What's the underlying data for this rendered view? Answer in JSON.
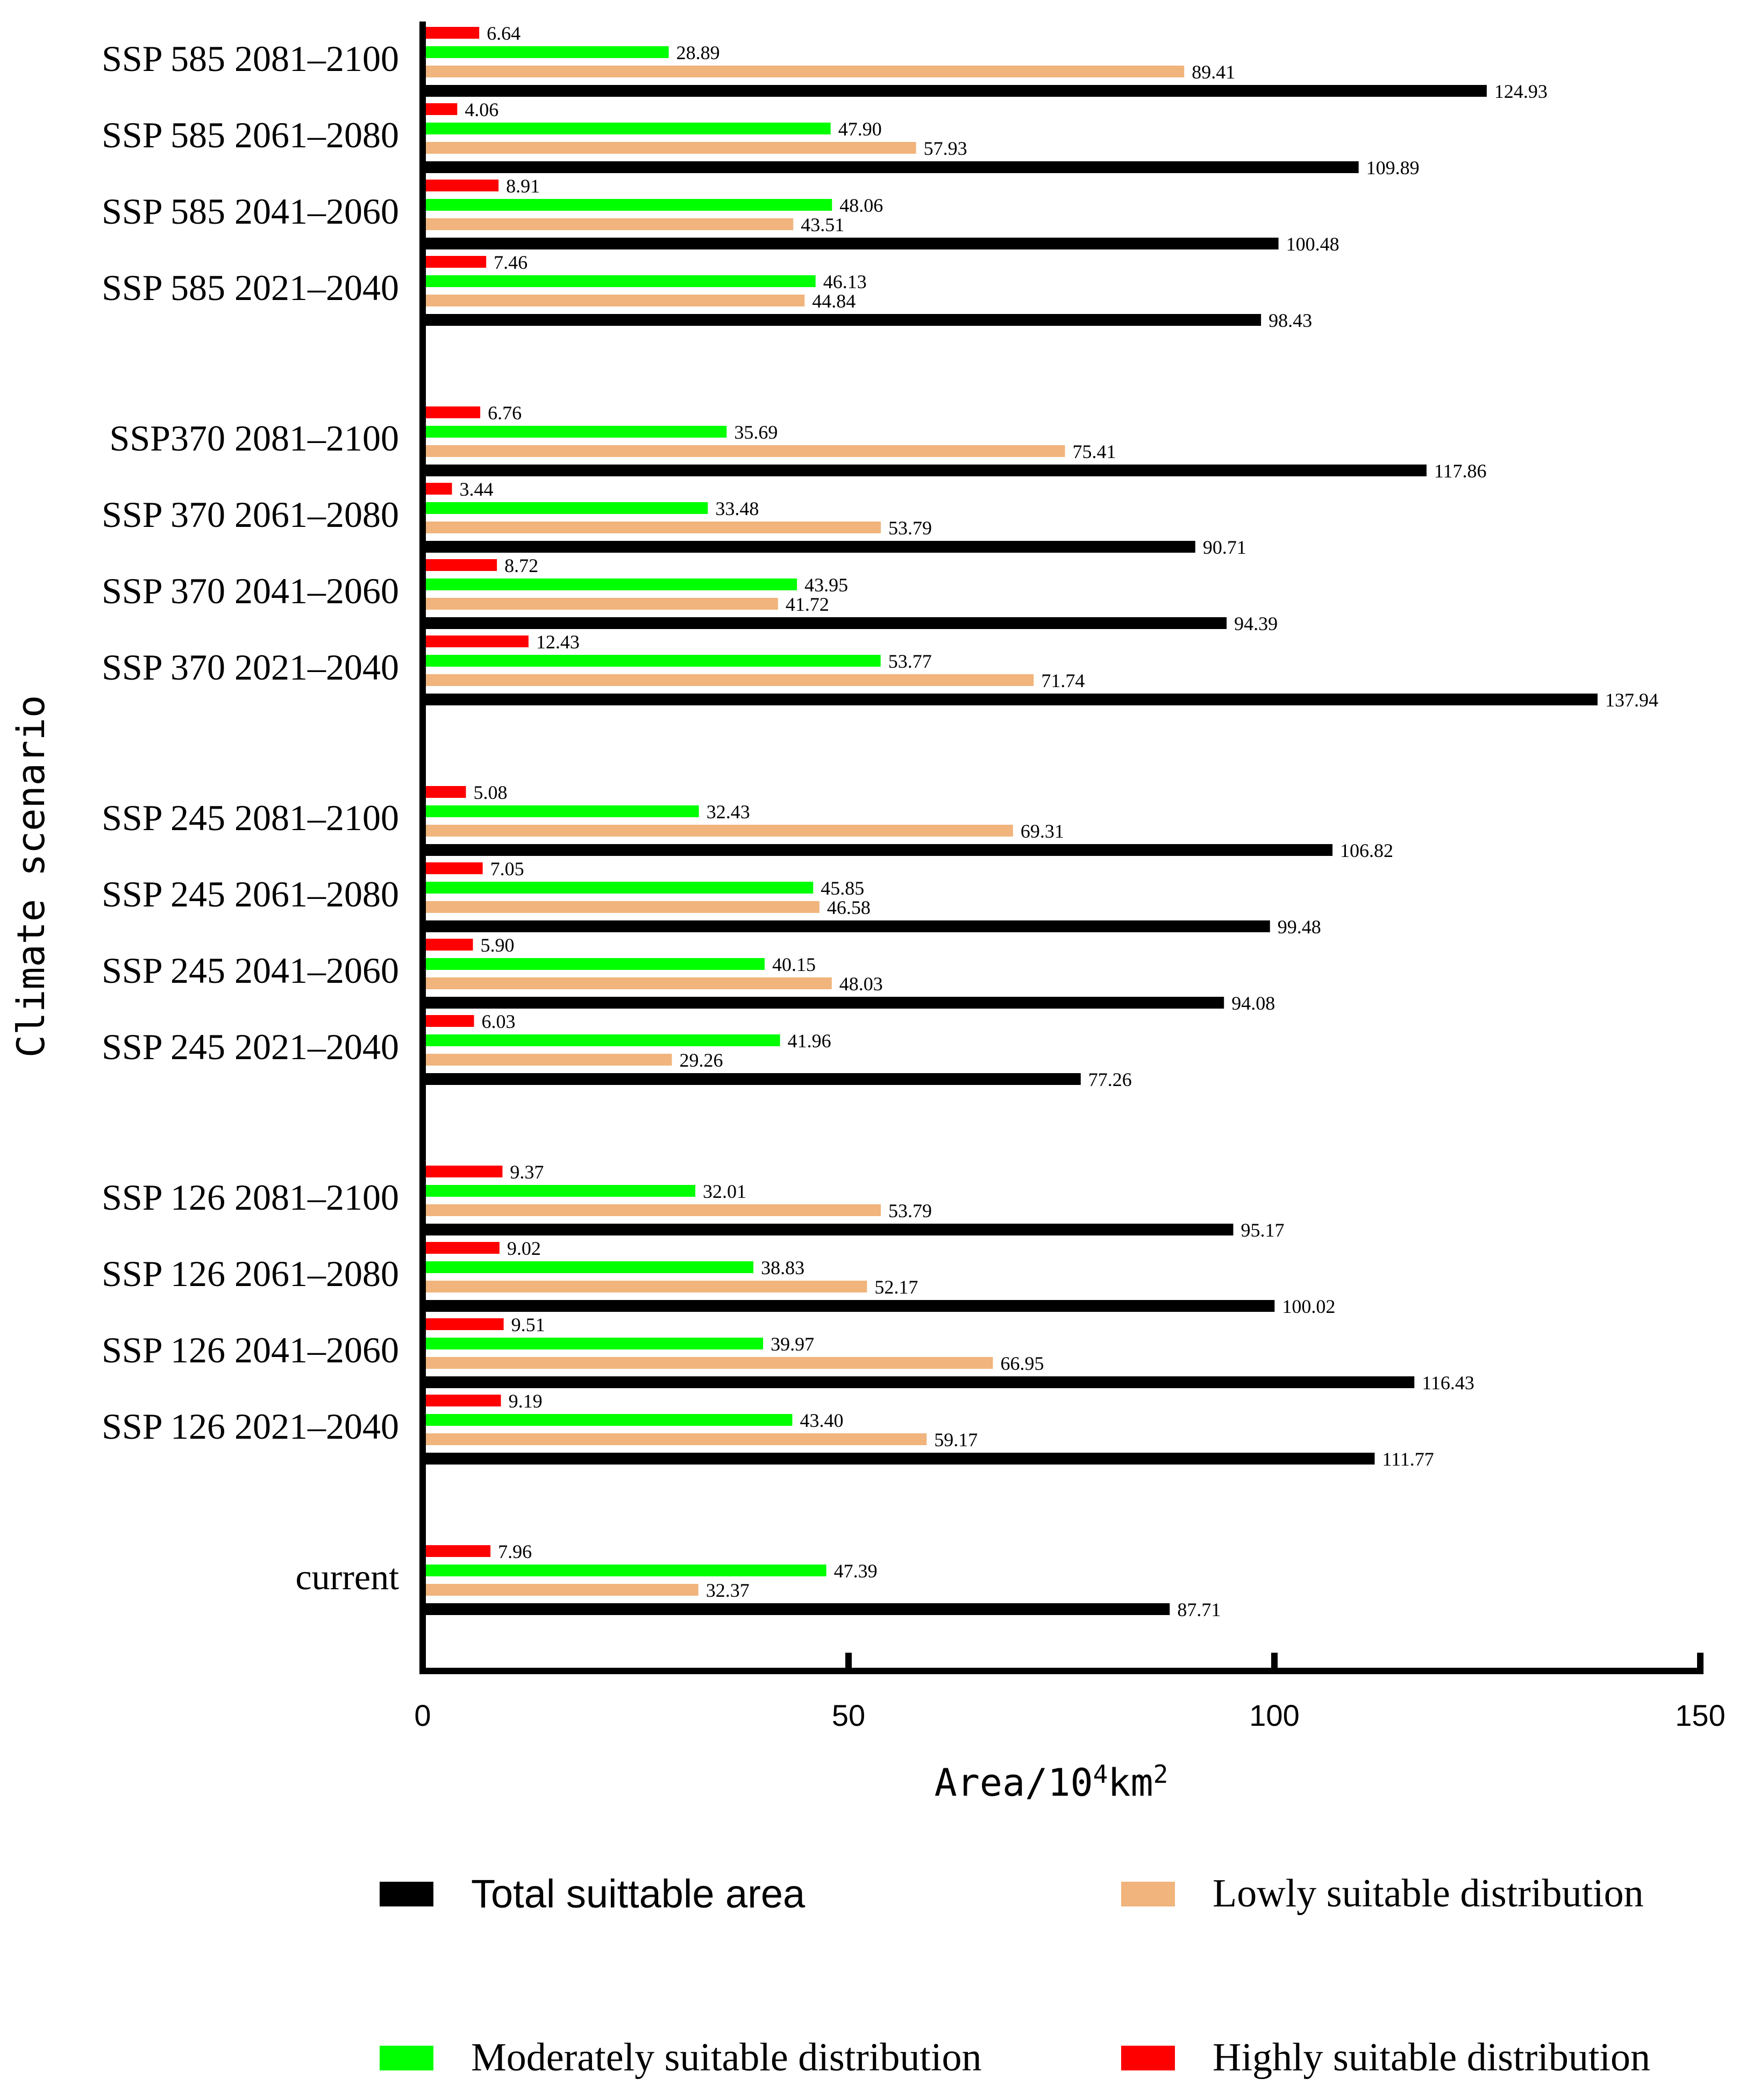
{
  "chart_data": {
    "type": "bar",
    "orientation": "horizontal",
    "ylabel": "Climate scenario",
    "xlabel_base": "Area/10",
    "xlabel_sup1": "4",
    "xlabel_mid": "km",
    "xlabel_sup2": "2",
    "xlim": [
      0,
      150
    ],
    "xticks": [
      0,
      50,
      100,
      150
    ],
    "categories": [
      "SSP 585 2081–2100",
      "SSP 585 2061–2080",
      "SSP 585 2041–2060",
      "SSP 585 2021–2040",
      "SSP370 2081–2100",
      "SSP 370 2061–2080",
      "SSP 370 2041–2060",
      "SSP 370 2021–2040",
      "SSP 245 2081–2100",
      "SSP 245 2061–2080",
      "SSP 245 2041–2060",
      "SSP 245 2021–2040",
      "SSP 126 2081–2100",
      "SSP 126 2061–2080",
      "SSP 126 2041–2060",
      "SSP 126 2021–2040",
      "current"
    ],
    "series": [
      {
        "name": "Highly suitable distribution",
        "color": "#ff0000",
        "values": [
          6.64,
          4.06,
          8.91,
          7.46,
          6.76,
          3.44,
          8.72,
          12.43,
          5.08,
          7.05,
          5.9,
          6.03,
          9.37,
          9.02,
          9.51,
          9.19,
          7.96
        ],
        "labels": [
          "6.64",
          "4.06",
          "8.91",
          "7.46",
          "6.76",
          "3.44",
          "8.72",
          "12.43",
          "5.08",
          "7.05",
          "5.90",
          "6.03",
          "9.37",
          "9.02",
          "9.51",
          "9.19",
          "7.96"
        ]
      },
      {
        "name": "Moderately suitable distribution",
        "color": "#00ff00",
        "values": [
          28.89,
          47.9,
          48.06,
          46.13,
          35.69,
          33.48,
          43.95,
          53.77,
          32.43,
          45.85,
          40.15,
          41.96,
          32.01,
          38.83,
          39.97,
          43.4,
          47.39
        ],
        "labels": [
          "28.89",
          "47.90",
          "48.06",
          "46.13",
          "35.69",
          "33.48",
          "43.95",
          "53.77",
          "32.43",
          "45.85",
          "40.15",
          "41.96",
          "32.01",
          "38.83",
          "39.97",
          "43.40",
          "47.39"
        ]
      },
      {
        "name": "Lowly suitable distribution",
        "color": "#f0b47c",
        "values": [
          89.41,
          57.93,
          43.51,
          44.84,
          75.41,
          53.79,
          41.72,
          71.74,
          69.31,
          46.58,
          48.03,
          29.26,
          53.79,
          52.17,
          66.95,
          59.17,
          32.37
        ],
        "labels": [
          "89.41",
          "57.93",
          "43.51",
          "44.84",
          "75.41",
          "53.79",
          "41.72",
          "71.74",
          "69.31",
          "46.58",
          "48.03",
          "29.26",
          "53.79",
          "52.17",
          "66.95",
          "59.17",
          "32.37"
        ]
      },
      {
        "name": "Total suittable area",
        "color": "#000000",
        "values": [
          124.93,
          109.89,
          100.48,
          98.43,
          117.86,
          90.71,
          94.39,
          137.94,
          106.82,
          99.48,
          94.08,
          77.26,
          95.17,
          100.02,
          116.43,
          111.77,
          87.71
        ],
        "labels": [
          "124.93",
          "109.89",
          "100.48",
          "98.43",
          "117.86",
          "90.71",
          "94.39",
          "137.94",
          "106.82",
          "99.48",
          "94.08",
          "77.26",
          "95.17",
          "100.02",
          "116.43",
          "111.77",
          "87.71"
        ]
      }
    ],
    "legend": {
      "position": "bottom",
      "items": [
        {
          "label": "Total suittable area",
          "color": "#000000"
        },
        {
          "label": "Lowly suitable distribution",
          "color": "#f0b47c"
        },
        {
          "label": "Moderately suitable distribution",
          "color": "#00ff00"
        },
        {
          "label": "Highly suitable distribution",
          "color": "#ff0000"
        }
      ]
    }
  }
}
